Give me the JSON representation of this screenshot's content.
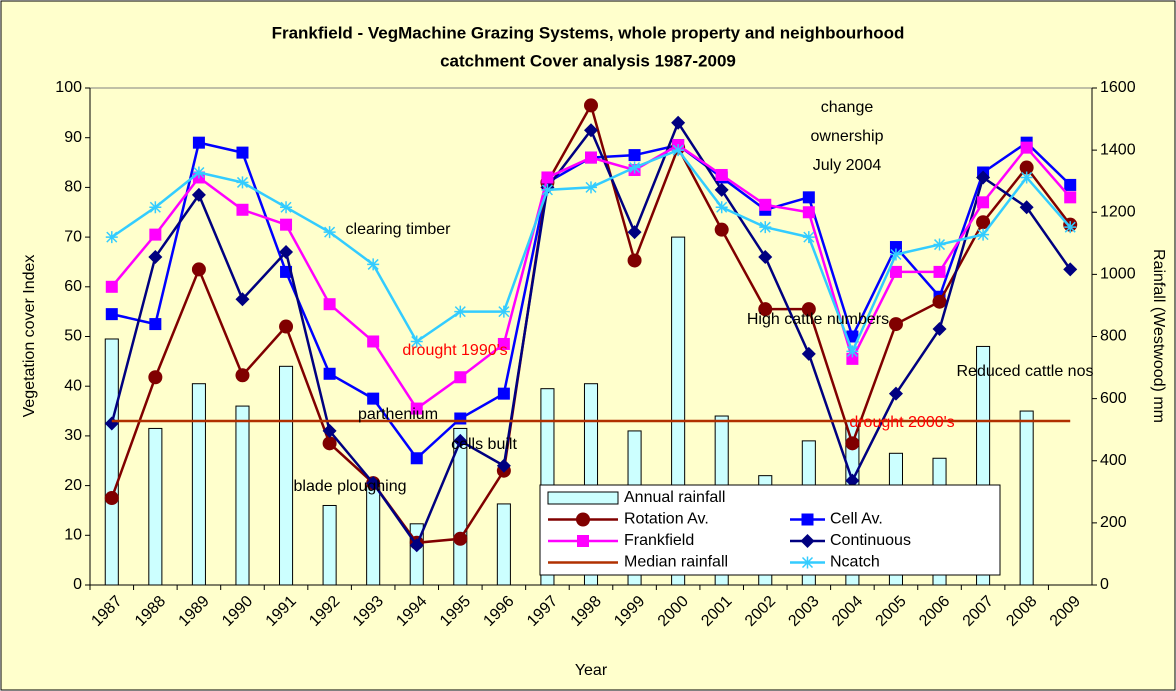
{
  "chart_data": {
    "type": "line",
    "title": [
      "Frankfield - VegMachine Grazing Systems, whole property and neighbourhood",
      "catchment Cover analysis 1987-2009"
    ],
    "x_label": "Year",
    "y_label": "Vegetation cover Index",
    "y2_label": "Rainfall (Westwood) mm",
    "categories": [
      "1987",
      "1988",
      "1989",
      "1990",
      "1991",
      "1992",
      "1993",
      "1994",
      "1995",
      "1996",
      "1997",
      "1998",
      "1999",
      "2000",
      "2001",
      "2002",
      "2003",
      "2004",
      "2005",
      "2006",
      "2007",
      "2008",
      "2009"
    ],
    "ylim": [
      0,
      100
    ],
    "yticks": [
      0,
      10,
      20,
      30,
      40,
      50,
      60,
      70,
      80,
      90,
      100
    ],
    "y2lim": [
      0,
      1600
    ],
    "y2ticks": [
      0,
      200,
      400,
      600,
      800,
      1000,
      1200,
      1400,
      1600
    ],
    "series": [
      {
        "name": "Annual rainfall",
        "type": "bar",
        "axis": "y2",
        "color": "#ccffff",
        "values": [
          792,
          504,
          648,
          576,
          704,
          256,
          320,
          197,
          504,
          261,
          632,
          648,
          496,
          1120,
          544,
          352,
          464,
          528,
          424,
          408,
          768,
          560,
          null
        ]
      },
      {
        "name": "Cell Av.",
        "color": "#0000ff",
        "marker": "square",
        "values": [
          54.5,
          52.5,
          89,
          87,
          63,
          42.5,
          37.5,
          25.5,
          33.5,
          38.5,
          81,
          86,
          86.5,
          88.5,
          82,
          75.5,
          78,
          50,
          68,
          58,
          83,
          89,
          80.5
        ]
      },
      {
        "name": "Rotation Av.",
        "color": "#800000",
        "marker": "circle",
        "values": [
          17.5,
          41.8,
          63.5,
          42.2,
          52,
          28.5,
          20.5,
          8.5,
          9.3,
          23,
          81,
          96.5,
          65.3,
          88,
          71.5,
          55.5,
          55.5,
          28.5,
          52.5,
          57,
          73,
          84,
          72.5
        ]
      },
      {
        "name": "Continuous",
        "color": "#000080",
        "marker": "diamond",
        "values": [
          32.5,
          66,
          78.5,
          57.5,
          67,
          31,
          20.5,
          8,
          29,
          24,
          80,
          91.5,
          71,
          93,
          79.5,
          66,
          46.5,
          21,
          38.5,
          51.5,
          82,
          76,
          63.5
        ]
      },
      {
        "name": "Frankfield",
        "color": "#ff00ff",
        "marker": "square",
        "values": [
          60,
          70.5,
          82,
          75.5,
          72.5,
          56.5,
          49,
          35.5,
          41.8,
          48.5,
          82,
          86,
          83.5,
          88.5,
          82.5,
          76.5,
          75,
          45.5,
          63,
          63,
          77,
          88,
          78
        ]
      },
      {
        "name": "Ncatch",
        "color": "#33ccff",
        "marker": "star",
        "values": [
          70,
          76,
          83,
          81,
          76,
          71,
          64.5,
          49,
          55,
          55,
          79.5,
          80,
          84,
          87.5,
          76,
          72,
          70,
          47,
          66.5,
          68.5,
          70.5,
          82,
          72
        ]
      },
      {
        "name": "Median rainfall",
        "axis": "y2",
        "color": "#b03000",
        "marker": "none",
        "values": [
          528,
          528,
          528,
          528,
          528,
          528,
          528,
          528,
          528,
          528,
          528,
          528,
          528,
          528,
          528,
          528,
          528,
          528,
          528,
          528,
          528,
          528,
          528
        ]
      }
    ],
    "annotations": [
      {
        "text": [
          "clearing timber"
        ],
        "color": "#000000"
      },
      {
        "text": [
          "drought 1990's"
        ],
        "color": "#ff0000"
      },
      {
        "text": [
          "parthenium"
        ],
        "color": "#000000"
      },
      {
        "text": [
          "blade ploughing"
        ],
        "color": "#000000"
      },
      {
        "text": [
          "cells built"
        ],
        "color": "#000000"
      },
      {
        "text": [
          "change",
          "ownership",
          "July 2004"
        ],
        "color": "#000000"
      },
      {
        "text": [
          "High cattle numbers"
        ],
        "color": "#000000"
      },
      {
        "text": [
          "drought 2000's"
        ],
        "color": "#ff0000"
      },
      {
        "text": [
          "Reduced cattle nos"
        ],
        "color": "#000000"
      }
    ]
  }
}
